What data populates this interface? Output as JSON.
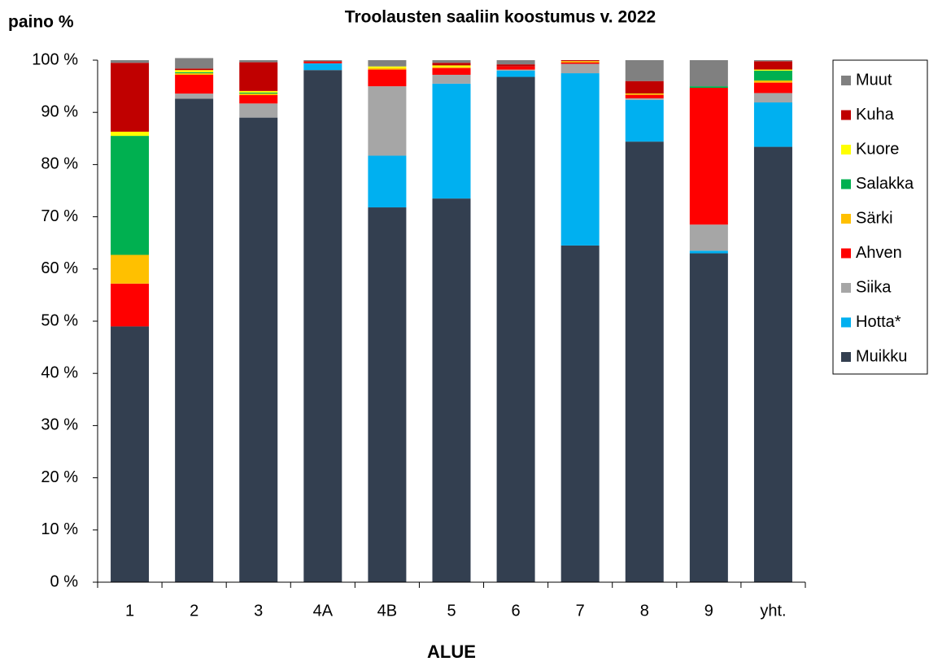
{
  "chart_data": {
    "type": "stacked_bar",
    "title": "Troolausten saaliin koostumus v. 2022",
    "ylabel": "paino %",
    "xlabel": "ALUE",
    "categories": [
      "1",
      "2",
      "3",
      "4A",
      "4B",
      "5",
      "6",
      "7",
      "8",
      "9",
      "yht."
    ],
    "series": [
      {
        "name": "Muikku",
        "color": "#333f50",
        "values": [
          49.0,
          92.6,
          89.0,
          98.1,
          71.8,
          73.5,
          96.8,
          64.5,
          84.4,
          63.0,
          83.4
        ]
      },
      {
        "name": "Hotta*",
        "color": "#00b0f0",
        "values": [
          0,
          0,
          0,
          1.3,
          9.9,
          22.0,
          1.2,
          33.0,
          8.0,
          0.5,
          8.5
        ]
      },
      {
        "name": "Siika",
        "color": "#a6a6a6",
        "values": [
          0,
          1.0,
          2.7,
          0,
          13.3,
          1.7,
          0.2,
          1.8,
          0.3,
          5.0,
          1.8
        ]
      },
      {
        "name": "Ahven",
        "color": "#ff0000",
        "values": [
          8.2,
          3.6,
          1.6,
          0.2,
          3.2,
          1.3,
          0.6,
          0.3,
          0.7,
          26.2,
          2.0
        ]
      },
      {
        "name": "Särki",
        "color": "#ffc000",
        "values": [
          5.5,
          0.3,
          0.3,
          0,
          0.3,
          0.2,
          0,
          0,
          0,
          0,
          0.4
        ]
      },
      {
        "name": "Salakka",
        "color": "#00b050",
        "values": [
          22.8,
          0.2,
          0.2,
          0,
          0,
          0,
          0,
          0,
          0,
          0.3,
          1.9
        ]
      },
      {
        "name": "Kuore",
        "color": "#ffff00",
        "values": [
          0.8,
          0.4,
          0.3,
          0,
          0.3,
          0.3,
          0,
          0.2,
          0.2,
          0,
          0.2
        ]
      },
      {
        "name": "Kuha",
        "color": "#c00000",
        "values": [
          13.2,
          0.3,
          5.5,
          0.2,
          0,
          0.5,
          0.4,
          0.2,
          2.4,
          0,
          1.6
        ]
      },
      {
        "name": "Muut",
        "color": "#808080",
        "values": [
          0.5,
          2.0,
          0.4,
          0.2,
          1.2,
          0.5,
          0.8,
          0,
          4.0,
          5.0,
          0.2
        ]
      }
    ],
    "ylim": [
      0,
      100
    ],
    "yticks": [
      {
        "value": 0,
        "label": "0 %"
      },
      {
        "value": 10,
        "label": "10 %"
      },
      {
        "value": 20,
        "label": "20 %"
      },
      {
        "value": 30,
        "label": "30 %"
      },
      {
        "value": 40,
        "label": "40 %"
      },
      {
        "value": 50,
        "label": "50 %"
      },
      {
        "value": 60,
        "label": "60 %"
      },
      {
        "value": 70,
        "label": "70 %"
      },
      {
        "value": 80,
        "label": "80 %"
      },
      {
        "value": 90,
        "label": "90 %"
      },
      {
        "value": 100,
        "label": "100 %"
      }
    ],
    "grid": false,
    "legend": "right"
  }
}
